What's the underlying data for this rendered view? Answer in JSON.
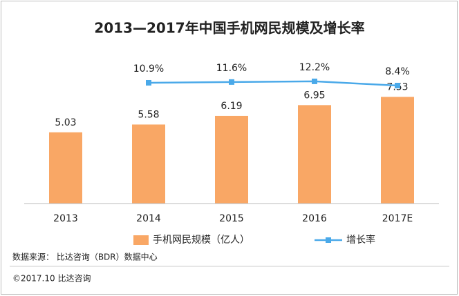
{
  "chart_data": {
    "type": "bar",
    "title": "2013—2017年中国手机网民规模及增长率",
    "categories": [
      "2013",
      "2014",
      "2015",
      "2016",
      "2017E"
    ],
    "series": [
      {
        "name": "手机网民规模（亿人）",
        "type": "bar",
        "color": "#f9a765",
        "values": [
          5.03,
          5.58,
          6.19,
          6.95,
          7.53
        ]
      },
      {
        "name": "增长率",
        "type": "line",
        "axis": "y2",
        "color": "#4aa9e9",
        "values": [
          null,
          10.9,
          11.6,
          12.2,
          8.4
        ],
        "value_labels": [
          null,
          "10.9%",
          "11.6%",
          "12.2%",
          "8.4%"
        ]
      }
    ],
    "ylim": [
      0,
      9.5
    ],
    "y2lim": [
      -98.5,
      23.4
    ],
    "legend": "bottom",
    "source": "数据来源： 比达咨询（BDR）数据中心",
    "copyright": "©2017.10   比达咨询"
  }
}
